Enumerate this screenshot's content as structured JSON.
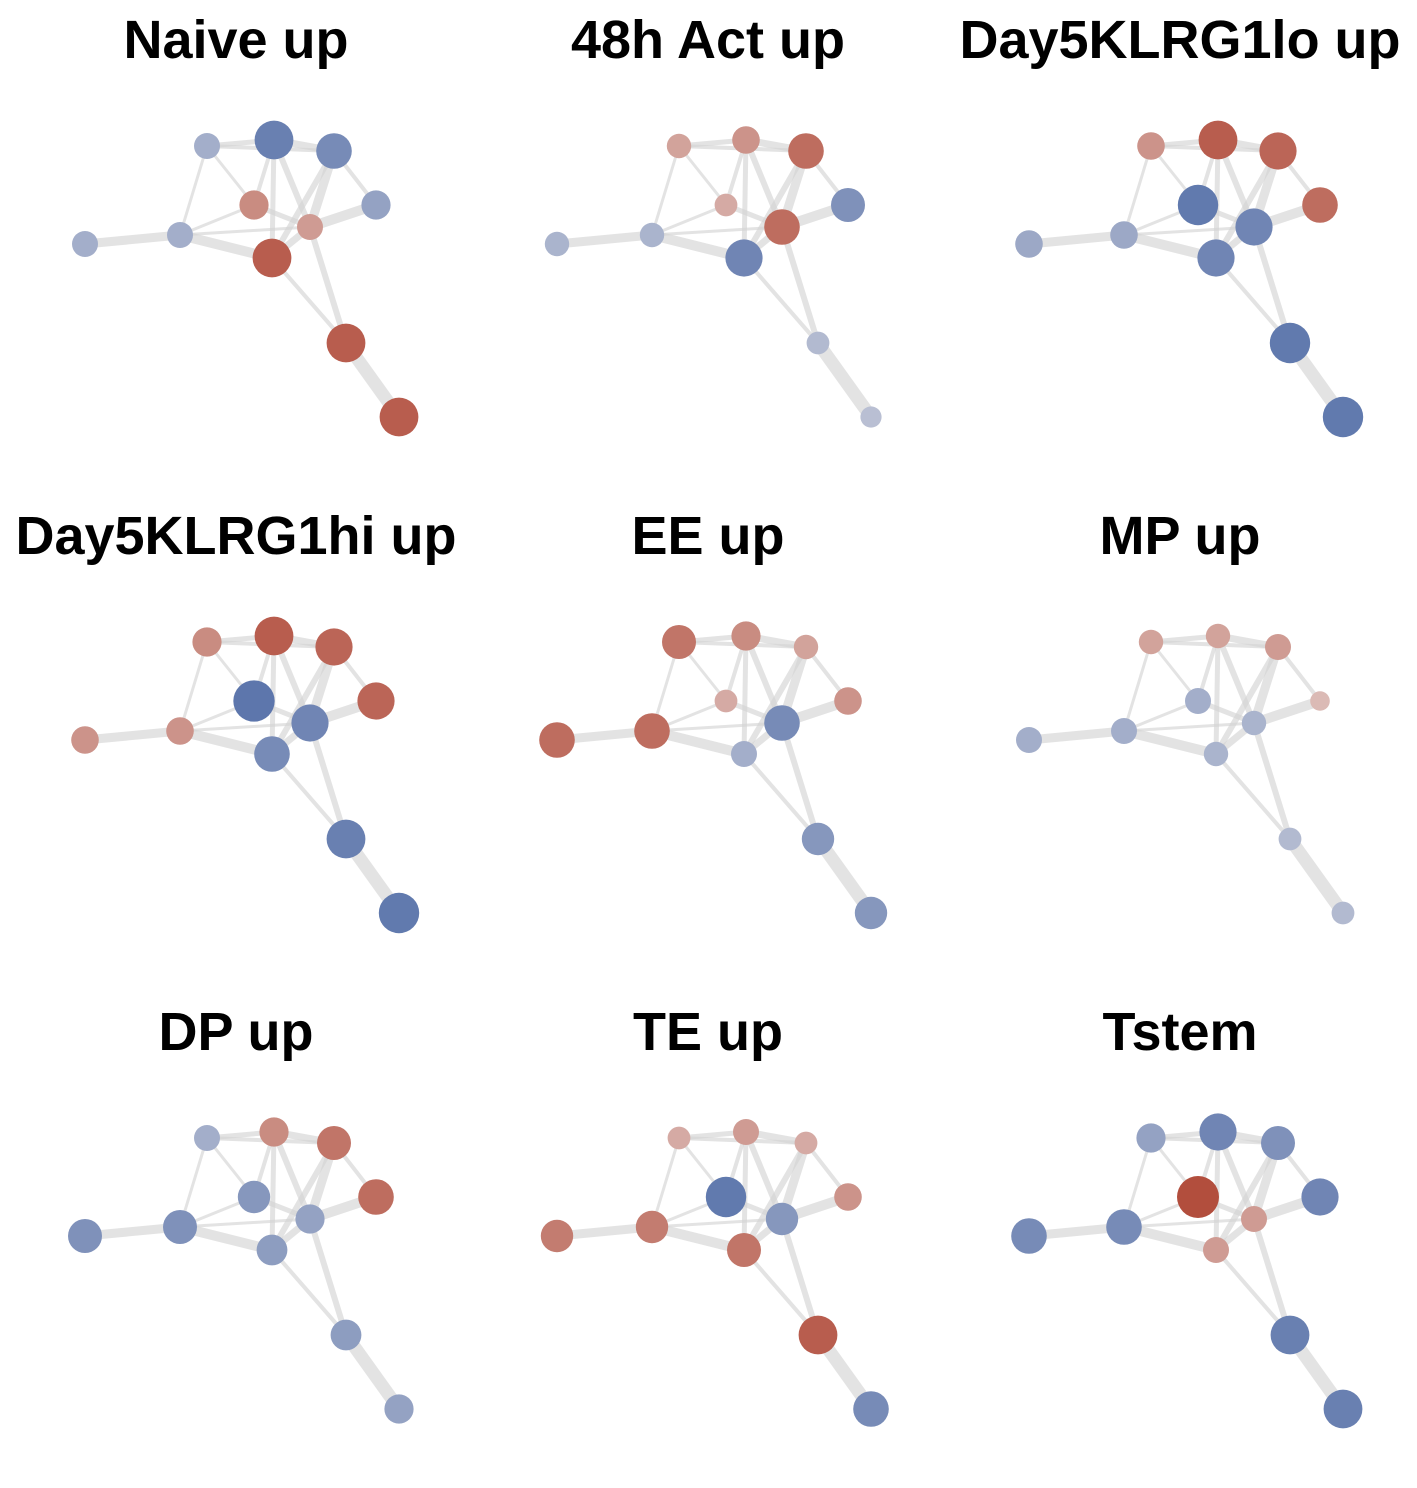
{
  "palette": {
    "blue": "#5a74ab",
    "neutral": "#ece8e8",
    "red": "#b24e3d",
    "edge": "#d4d4d4"
  },
  "panels": [
    {
      "title": "Naive up",
      "values": [
        -0.5,
        -0.9,
        -0.8,
        -0.6,
        0.6,
        0.5,
        0.9,
        -0.5,
        0.9,
        0.9
      ]
    },
    {
      "title": "48h Act up",
      "values": [
        0.45,
        0.55,
        0.8,
        -0.75,
        0.4,
        0.8,
        -0.85,
        -0.45,
        -0.4,
        -0.35
      ]
    },
    {
      "title": "Day5KLRG1lo up",
      "values": [
        0.55,
        0.9,
        0.85,
        0.8,
        -0.95,
        -0.85,
        -0.85,
        -0.55,
        -0.95,
        -0.95
      ]
    },
    {
      "title": "Day5KLRG1hi up",
      "values": [
        0.6,
        0.9,
        0.85,
        0.85,
        -0.98,
        -0.85,
        -0.8,
        0.55,
        -0.9,
        -0.95
      ]
    },
    {
      "title": "EE up",
      "values": [
        0.75,
        0.6,
        0.45,
        0.55,
        0.4,
        -0.8,
        -0.5,
        0.8,
        -0.7,
        -0.7
      ]
    },
    {
      "title": "MP up",
      "values": [
        0.45,
        0.45,
        0.5,
        0.3,
        -0.5,
        -0.45,
        -0.45,
        -0.5,
        -0.4,
        -0.4
      ]
    },
    {
      "title": "DP up",
      "values": [
        -0.5,
        0.6,
        0.75,
        0.8,
        -0.7,
        -0.6,
        -0.65,
        -0.75,
        -0.65,
        -0.6
      ]
    },
    {
      "title": "TE up",
      "values": [
        0.4,
        0.5,
        0.4,
        0.55,
        -0.95,
        -0.7,
        0.75,
        0.7,
        0.9,
        -0.8
      ]
    },
    {
      "title": "Tstem",
      "values": [
        -0.6,
        -0.85,
        -0.75,
        -0.85,
        1.0,
        0.5,
        0.5,
        -0.8,
        -0.9,
        -0.9
      ]
    }
  ]
}
